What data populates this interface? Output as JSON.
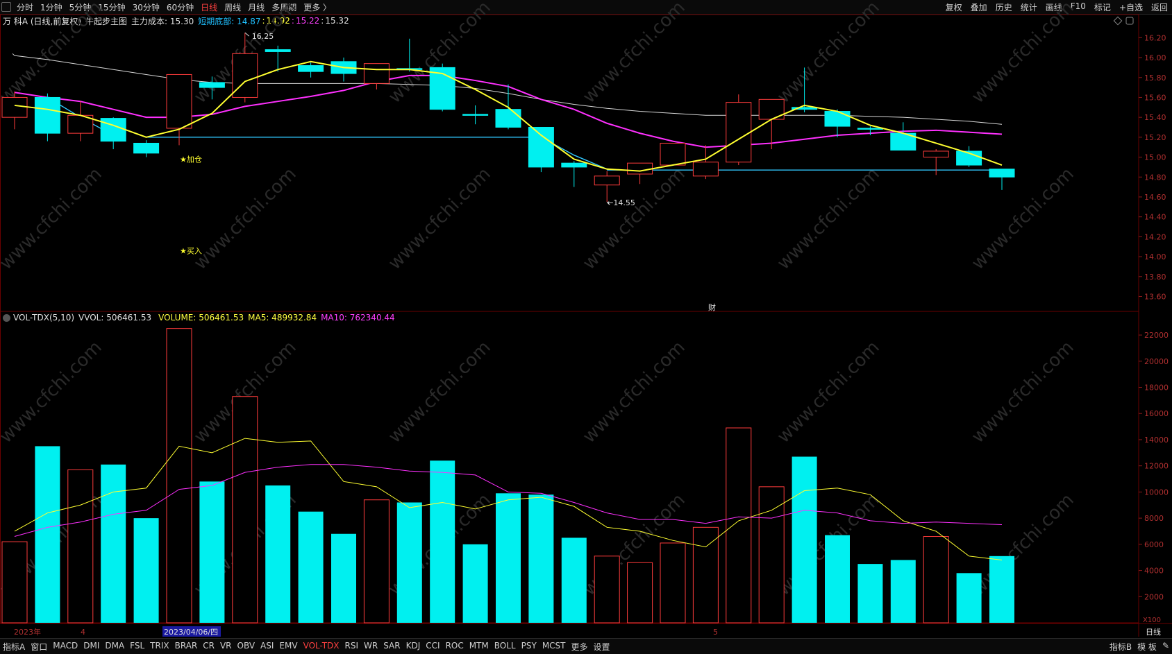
{
  "topbar": {
    "periods": [
      "分时",
      "1分钟",
      "5分钟",
      "15分钟",
      "30分钟",
      "60分钟",
      "日线",
      "周线",
      "月线",
      "多周期",
      "更多 〉"
    ],
    "active_period": "日线",
    "right_items": [
      "复权",
      "叠加",
      "历史",
      "统计",
      "画线",
      "F10",
      "标记",
      "+自选",
      "返回"
    ]
  },
  "info": {
    "stock": "万 科A (日线,前复权)",
    "indicator": "牛起步主图",
    "cost_label": "主力成本: 15.30",
    "bottom_label": "短期底部: 14.87",
    "v2": "14.92",
    "v3": "15.22",
    "v4": "15.32",
    "colors": {
      "bottom": "#20c0ff",
      "v2": "#ffff40",
      "v3": "#ff40ff",
      "v4": "#e0e0e0"
    }
  },
  "vol_info": {
    "name": "VOL-TDX(5,10)",
    "vvol": "VVOL: 506461.53",
    "volume": "VOLUME: 506461.53",
    "ma5": "MA5: 489932.84",
    "ma10": "MA10: 762340.44"
  },
  "annotations": {
    "high": "16.25",
    "low": "14.55",
    "add": "★加仓",
    "buy": "★买入",
    "cai": "财"
  },
  "dates": {
    "year": "2023年",
    "m4": "4",
    "cursor": "2023/04/06/四",
    "m5": "5"
  },
  "unit_x100": "X100",
  "bottom_period": "日线",
  "bottombar": {
    "items": [
      "指标A",
      "窗口",
      "MACD",
      "DMI",
      "DMA",
      "FSL",
      "TRIX",
      "BRAR",
      "CR",
      "VR",
      "OBV",
      "ASI",
      "EMV",
      "VOL-TDX",
      "RSI",
      "WR",
      "SAR",
      "KDJ",
      "CCI",
      "ROC",
      "MTM",
      "BOLL",
      "PSY",
      "MCST",
      "更多",
      "设置"
    ],
    "active": "VOL-TDX",
    "right_items": [
      "指标B",
      "模 板",
      "✎"
    ]
  },
  "watermark": "www.cfchi.com",
  "chart_data": {
    "type": "candlestick",
    "price_ticks": [
      16.2,
      16.0,
      15.8,
      15.6,
      15.4,
      15.2,
      15.0,
      14.8,
      14.6,
      14.4,
      14.2,
      14.0,
      13.8,
      13.6
    ],
    "price_range": [
      13.45,
      16.3
    ],
    "volume_ticks": [
      22000,
      20000,
      18000,
      16000,
      14000,
      12000,
      10000,
      8000,
      6000,
      4000,
      2000
    ],
    "volume_range": [
      0,
      22800
    ],
    "candles": [
      {
        "o": 15.4,
        "c": 15.6,
        "h": 15.66,
        "l": 15.28,
        "v": 6200
      },
      {
        "o": 15.6,
        "c": 15.24,
        "h": 15.64,
        "l": 15.16,
        "v": 13500
      },
      {
        "o": 15.24,
        "c": 15.42,
        "h": 15.56,
        "l": 15.16,
        "v": 11700
      },
      {
        "o": 15.39,
        "c": 15.16,
        "h": 15.4,
        "l": 15.08,
        "v": 12100
      },
      {
        "o": 15.14,
        "c": 15.04,
        "h": 15.17,
        "l": 15.0,
        "v": 8000
      },
      {
        "o": 15.29,
        "c": 15.83,
        "h": 15.83,
        "l": 15.12,
        "v": 22500
      },
      {
        "o": 15.75,
        "c": 15.7,
        "h": 15.81,
        "l": 15.58,
        "v": 10800
      },
      {
        "o": 15.6,
        "c": 16.04,
        "h": 16.25,
        "l": 15.55,
        "v": 17300
      },
      {
        "o": 16.08,
        "c": 16.06,
        "h": 16.12,
        "l": 15.86,
        "v": 10500
      },
      {
        "o": 15.92,
        "c": 15.86,
        "h": 15.95,
        "l": 15.8,
        "v": 8500
      },
      {
        "o": 15.96,
        "c": 15.84,
        "h": 16.0,
        "l": 15.76,
        "v": 6800
      },
      {
        "o": 15.74,
        "c": 15.94,
        "h": 15.94,
        "l": 15.68,
        "v": 9400
      },
      {
        "o": 15.89,
        "c": 15.88,
        "h": 16.19,
        "l": 15.86,
        "v": 9200
      },
      {
        "o": 15.9,
        "c": 15.48,
        "h": 15.94,
        "l": 15.46,
        "v": 12400
      },
      {
        "o": 15.43,
        "c": 15.42,
        "h": 15.52,
        "l": 15.33,
        "v": 6000
      },
      {
        "o": 15.48,
        "c": 15.3,
        "h": 15.73,
        "l": 15.28,
        "v": 9900
      },
      {
        "o": 15.3,
        "c": 14.9,
        "h": 15.3,
        "l": 14.85,
        "v": 9800
      },
      {
        "o": 14.94,
        "c": 14.9,
        "h": 14.96,
        "l": 14.7,
        "v": 6500
      },
      {
        "o": 14.72,
        "c": 14.81,
        "h": 14.86,
        "l": 14.55,
        "v": 5100
      },
      {
        "o": 14.83,
        "c": 14.94,
        "h": 14.94,
        "l": 14.73,
        "v": 4600
      },
      {
        "o": 14.92,
        "c": 15.14,
        "h": 15.14,
        "l": 14.92,
        "v": 6100
      },
      {
        "o": 14.81,
        "c": 14.95,
        "h": 15.12,
        "l": 14.78,
        "v": 7300
      },
      {
        "o": 14.95,
        "c": 15.55,
        "h": 15.63,
        "l": 14.92,
        "v": 14900
      },
      {
        "o": 15.38,
        "c": 15.58,
        "h": 15.58,
        "l": 15.08,
        "v": 10400
      },
      {
        "o": 15.5,
        "c": 15.48,
        "h": 15.9,
        "l": 15.45,
        "v": 12700
      },
      {
        "o": 15.46,
        "c": 15.31,
        "h": 15.48,
        "l": 15.2,
        "v": 6700
      },
      {
        "o": 15.29,
        "c": 15.28,
        "h": 15.31,
        "l": 15.22,
        "v": 4500
      },
      {
        "o": 15.24,
        "c": 15.07,
        "h": 15.35,
        "l": 15.07,
        "v": 4800
      },
      {
        "o": 15.0,
        "c": 15.06,
        "h": 15.08,
        "l": 14.82,
        "v": 6600
      },
      {
        "o": 15.06,
        "c": 14.92,
        "h": 15.11,
        "l": 14.9,
        "v": 3800
      },
      {
        "o": 14.88,
        "c": 14.8,
        "h": 14.88,
        "l": 14.67,
        "v": 5100
      }
    ],
    "ma_yellow": [
      15.52,
      15.48,
      15.42,
      15.32,
      15.2,
      15.28,
      15.44,
      15.76,
      15.88,
      15.96,
      15.9,
      15.88,
      15.88,
      15.84,
      15.68,
      15.5,
      15.22,
      14.98,
      14.88,
      14.86,
      14.92,
      14.98,
      15.18,
      15.38,
      15.52,
      15.46,
      15.32,
      15.24,
      15.14,
      15.04,
      14.92
    ],
    "ma_magenta": [
      15.65,
      15.6,
      15.56,
      15.48,
      15.4,
      15.4,
      15.43,
      15.51,
      15.56,
      15.61,
      15.67,
      15.76,
      15.82,
      15.82,
      15.77,
      15.71,
      15.58,
      15.48,
      15.34,
      15.24,
      15.16,
      15.1,
      15.12,
      15.14,
      15.18,
      15.22,
      15.24,
      15.26,
      15.27,
      15.25,
      15.23
    ],
    "ma_white": [
      16.02,
      15.98,
      15.93,
      15.88,
      15.83,
      15.78,
      15.75,
      15.74,
      15.74,
      15.74,
      15.74,
      15.74,
      15.73,
      15.72,
      15.69,
      15.64,
      15.58,
      15.53,
      15.49,
      15.46,
      15.44,
      15.42,
      15.42,
      15.42,
      15.42,
      15.42,
      15.41,
      15.4,
      15.38,
      15.36,
      15.33
    ],
    "cyan_segments": [
      {
        "from": 1,
        "to": 4,
        "values": [
          15.6,
          15.4,
          15.22
        ]
      },
      {
        "from": 4,
        "to": 16,
        "level": 15.2
      },
      {
        "from": 16,
        "to": 18,
        "values": [
          15.2,
          15.02,
          14.88
        ]
      },
      {
        "from": 18,
        "to": 30,
        "level": 14.87
      }
    ],
    "vol_ma5": [
      7000,
      8400,
      9000,
      10000,
      10300,
      13500,
      13000,
      14100,
      13800,
      13900,
      10800,
      10400,
      8800,
      9200,
      8700,
      9400,
      9600,
      8900,
      7300,
      7000,
      6300,
      5800,
      7800,
      8600,
      10100,
      10300,
      9800,
      7800,
      7000,
      5100,
      4800
    ],
    "vol_ma10": [
      6600,
      7300,
      7700,
      8300,
      8600,
      10200,
      10500,
      11500,
      11900,
      12100,
      12100,
      11900,
      11600,
      11500,
      11300,
      10000,
      9900,
      9200,
      8400,
      7900,
      7900,
      7600,
      8100,
      8000,
      8600,
      8400,
      7800,
      7600,
      7700,
      7600,
      7500
    ]
  }
}
